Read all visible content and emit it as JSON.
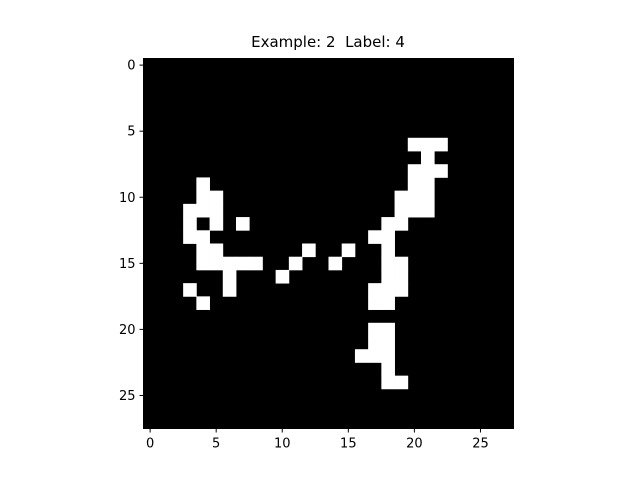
{
  "chart_data": {
    "type": "heatmap",
    "title": "Example: 2  Label: 4",
    "grid_size": 28,
    "colormap": "gray",
    "foreground": "#ffffff",
    "background": "#000000",
    "x_ticks": [
      0,
      5,
      10,
      15,
      20,
      25
    ],
    "y_ticks": [
      0,
      5,
      10,
      15,
      20,
      25
    ],
    "pixels": [
      [
        6,
        20
      ],
      [
        6,
        21
      ],
      [
        6,
        22
      ],
      [
        7,
        21
      ],
      [
        8,
        20
      ],
      [
        8,
        21
      ],
      [
        8,
        22
      ],
      [
        9,
        4
      ],
      [
        9,
        20
      ],
      [
        9,
        21
      ],
      [
        10,
        4
      ],
      [
        10,
        5
      ],
      [
        10,
        19
      ],
      [
        10,
        20
      ],
      [
        10,
        21
      ],
      [
        11,
        3
      ],
      [
        11,
        4
      ],
      [
        11,
        5
      ],
      [
        11,
        19
      ],
      [
        11,
        20
      ],
      [
        11,
        21
      ],
      [
        12,
        3
      ],
      [
        12,
        5
      ],
      [
        12,
        7
      ],
      [
        12,
        18
      ],
      [
        12,
        19
      ],
      [
        13,
        3
      ],
      [
        13,
        4
      ],
      [
        13,
        17
      ],
      [
        13,
        18
      ],
      [
        14,
        4
      ],
      [
        14,
        5
      ],
      [
        14,
        12
      ],
      [
        14,
        15
      ],
      [
        14,
        18
      ],
      [
        15,
        4
      ],
      [
        15,
        5
      ],
      [
        15,
        6
      ],
      [
        15,
        7
      ],
      [
        15,
        8
      ],
      [
        15,
        11
      ],
      [
        15,
        14
      ],
      [
        15,
        18
      ],
      [
        15,
        19
      ],
      [
        16,
        6
      ],
      [
        16,
        10
      ],
      [
        16,
        18
      ],
      [
        16,
        19
      ],
      [
        17,
        3
      ],
      [
        17,
        6
      ],
      [
        17,
        17
      ],
      [
        17,
        18
      ],
      [
        17,
        19
      ],
      [
        18,
        4
      ],
      [
        18,
        17
      ],
      [
        18,
        18
      ],
      [
        20,
        17
      ],
      [
        20,
        18
      ],
      [
        21,
        17
      ],
      [
        21,
        18
      ],
      [
        22,
        16
      ],
      [
        22,
        17
      ],
      [
        22,
        18
      ],
      [
        23,
        18
      ],
      [
        24,
        18
      ],
      [
        24,
        19
      ]
    ]
  }
}
